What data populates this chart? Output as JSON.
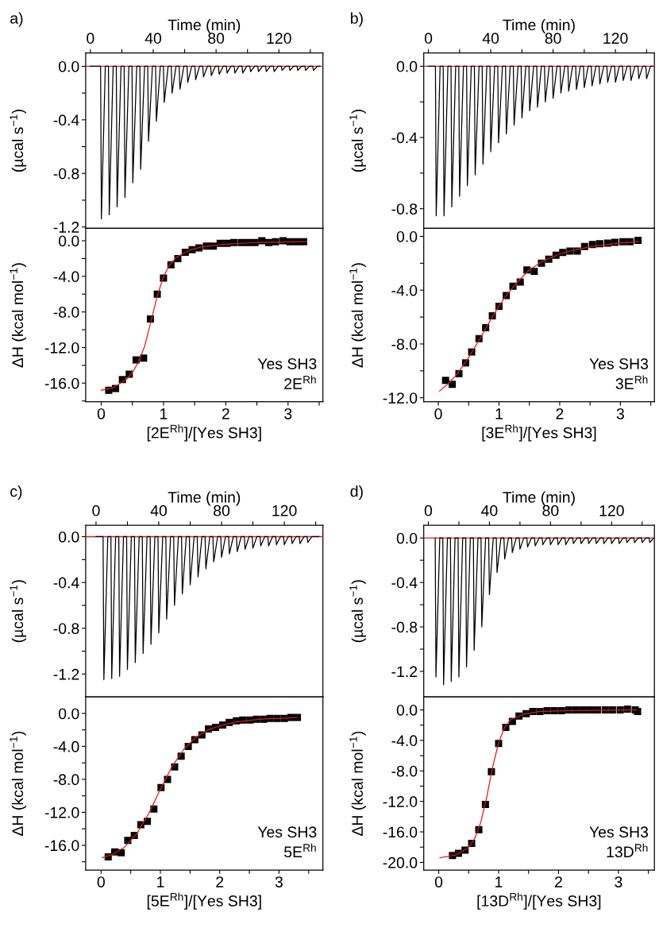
{
  "chart_data": [
    {
      "type": "line",
      "title": "a)",
      "xlabel": "Time (min)",
      "ylabel": "(µcal s$^{−1}$)",
      "grid": false,
      "marker": "none",
      "line_style": "solid",
      "x": [
        0,
        6.5,
        7,
        9.5,
        11.5,
        12,
        14.5,
        16.5,
        17,
        19.5,
        21.5,
        22,
        24.5,
        26.5,
        27,
        29.5,
        31.5,
        32,
        34.5,
        36.5,
        37,
        39.5,
        41.5,
        42,
        44.5,
        46.5,
        47,
        49.5,
        51.5,
        52,
        54.5,
        56.5,
        57,
        59.5,
        61.5,
        62,
        64.5,
        66.5,
        67,
        69.5,
        71.5,
        72,
        74.5,
        76.5,
        77,
        79.5,
        81.5,
        82,
        84.5,
        86.5,
        87,
        89.5,
        91.5,
        92,
        94.5,
        96.5,
        97,
        99.5,
        101.5,
        102,
        104.5,
        106.5,
        107,
        109.5,
        111.5,
        112,
        114.5,
        116.5,
        117,
        119.5,
        121.5,
        122,
        124.5,
        126.5,
        127,
        129.5,
        131.5,
        132,
        134.5,
        136.5,
        137,
        139.5,
        141.5,
        142,
        144.5,
        146
      ],
      "series": [
        {
          "color": "#000000",
          "values": [
            0,
            0,
            -1.14,
            0,
            0,
            -1.11,
            0,
            0,
            -1.05,
            0,
            0,
            -0.98,
            0,
            0,
            -0.87,
            0,
            0,
            -0.77,
            0,
            0,
            -0.56,
            0,
            0,
            -0.41,
            0,
            0,
            -0.27,
            0,
            0,
            -0.2,
            0,
            0,
            -0.17,
            0,
            0,
            -0.12,
            0,
            0,
            -0.1,
            0,
            0,
            -0.08,
            0,
            0,
            -0.07,
            0,
            0,
            -0.06,
            0,
            0,
            -0.05,
            0,
            0,
            -0.05,
            0,
            0,
            -0.05,
            0,
            0,
            -0.04,
            0,
            0,
            -0.04,
            0,
            0,
            -0.04,
            0,
            0,
            -0.04,
            0,
            0,
            -0.03,
            0,
            0,
            -0.03,
            0,
            0,
            -0.03,
            0,
            0,
            -0.03,
            0,
            0,
            -0.03,
            0,
            0
          ]
        }
      ],
      "ref_lines": [
        {
          "axis": "y",
          "value": 0,
          "color": "#e31a1c"
        }
      ],
      "xlim": [
        -3,
        148
      ],
      "ylim": [
        -1.21,
        0.1
      ],
      "xticks": [
        {
          "value": 0,
          "label": "0"
        },
        {
          "value": 20,
          "label": null
        },
        {
          "value": 40,
          "label": "40"
        },
        {
          "value": 60,
          "label": null
        },
        {
          "value": 80,
          "label": "80"
        },
        {
          "value": 100,
          "label": null
        },
        {
          "value": 120,
          "label": "120"
        },
        {
          "value": 140,
          "label": null
        }
      ],
      "yticks": [
        {
          "value": 0,
          "label": "0.0"
        },
        {
          "value": -0.2,
          "label": null
        },
        {
          "value": -0.4,
          "label": "-0.4"
        },
        {
          "value": -0.6,
          "label": null
        },
        {
          "value": -0.8,
          "label": "-0.8"
        },
        {
          "value": -1.0,
          "label": null
        },
        {
          "value": -1.2,
          "label": "-1.2"
        }
      ]
    },
    {
      "type": "scatter",
      "xlabel": "[2E$^{Rh}$]/[Yes SH3]",
      "ylabel": "ΔH (kcal mol$^{−1}$)",
      "grid": false,
      "marker": "square",
      "annotations": [
        "Yes SH3",
        "2E$^{Rh}$"
      ],
      "series": [
        {
          "type": "scatter",
          "color": "#000000",
          "x": [
            0.12,
            0.23,
            0.34,
            0.45,
            0.56,
            0.68,
            0.79,
            0.9,
            1.0,
            1.12,
            1.23,
            1.35,
            1.46,
            1.57,
            1.69,
            1.8,
            1.91,
            2.02,
            2.13,
            2.25,
            2.36,
            2.47,
            2.58,
            2.69,
            2.8,
            2.92,
            3.03,
            3.14,
            3.25
          ],
          "values": [
            -16.8,
            -16.6,
            -15.6,
            -15.0,
            -13.4,
            -13.2,
            -8.8,
            -6.0,
            -4.2,
            -2.7,
            -2.0,
            -1.3,
            -1.0,
            -0.8,
            -0.6,
            -0.6,
            -0.3,
            -0.3,
            -0.2,
            -0.2,
            -0.2,
            -0.2,
            0.0,
            -0.2,
            -0.1,
            0.0,
            -0.1,
            -0.1,
            -0.1
          ]
        },
        {
          "type": "line",
          "marker": "none",
          "color": "#e31a1c",
          "x": [
            0.0,
            0.2,
            0.4,
            0.5,
            0.6,
            0.7,
            0.8,
            0.9,
            1.0,
            1.1,
            1.2,
            1.4,
            1.6,
            2.0,
            2.5,
            3.3
          ],
          "values": [
            -16.8,
            -16.5,
            -15.6,
            -14.8,
            -13.6,
            -11.8,
            -9.0,
            -6.2,
            -4.0,
            -2.7,
            -1.9,
            -1.1,
            -0.7,
            -0.4,
            -0.2,
            -0.1
          ]
        }
      ],
      "xlim": [
        -0.25,
        3.56
      ],
      "ylim": [
        -18.1,
        1.4
      ],
      "xticks": [
        {
          "value": 0,
          "label": "0"
        },
        {
          "value": 0.5,
          "label": null
        },
        {
          "value": 1,
          "label": "1"
        },
        {
          "value": 1.5,
          "label": null
        },
        {
          "value": 2,
          "label": "2"
        },
        {
          "value": 2.5,
          "label": null
        },
        {
          "value": 3,
          "label": "3"
        },
        {
          "value": 3.5,
          "label": null
        }
      ],
      "yticks": [
        {
          "value": 0,
          "label": "0.0"
        },
        {
          "value": -2,
          "label": null
        },
        {
          "value": -4,
          "label": "-4.0"
        },
        {
          "value": -6,
          "label": null
        },
        {
          "value": -8,
          "label": "-8.0"
        },
        {
          "value": -10,
          "label": null
        },
        {
          "value": -12,
          "label": "-12.0"
        },
        {
          "value": -14,
          "label": null
        },
        {
          "value": -16,
          "label": "-16.0"
        },
        {
          "value": -18,
          "label": null
        }
      ]
    },
    {
      "type": "line",
      "title": "b)",
      "xlabel": "Time (min)",
      "ylabel": "(µcal s$^{−1}$)",
      "grid": false,
      "marker": "none",
      "line_style": "solid",
      "x": [
        0,
        4.5,
        5,
        7.5,
        9.5,
        10,
        12.5,
        14.5,
        15,
        17.5,
        19.5,
        20,
        22.5,
        24.5,
        25,
        27.5,
        29.5,
        30,
        32.5,
        34.5,
        35,
        37.5,
        39.5,
        40,
        42.5,
        44.5,
        45,
        47.5,
        49.5,
        50,
        52.5,
        54.5,
        55,
        57.5,
        59.5,
        60,
        62.5,
        64.5,
        65,
        67.5,
        69.5,
        70,
        72.5,
        74.5,
        75,
        77.5,
        79.5,
        80,
        82.5,
        84.5,
        85,
        87.5,
        89.5,
        90,
        92.5,
        94.5,
        95,
        97.5,
        99.5,
        100,
        102.5,
        104.5,
        105,
        107.5,
        109.5,
        110,
        112.5,
        114.5,
        115,
        117.5,
        119.5,
        120,
        122.5,
        124.5,
        125,
        127.5,
        129.5,
        130,
        132.5,
        134.5,
        135,
        137.5,
        139.5,
        140,
        142.5,
        144
      ],
      "series": [
        {
          "color": "#000000",
          "values": [
            0,
            0,
            -0.84,
            0,
            0,
            -0.84,
            0,
            0,
            -0.79,
            0,
            0,
            -0.73,
            0,
            0,
            -0.67,
            0,
            0,
            -0.61,
            0,
            0,
            -0.55,
            0,
            0,
            -0.48,
            0,
            0,
            -0.43,
            0,
            0,
            -0.38,
            0,
            0,
            -0.33,
            0,
            0,
            -0.29,
            0,
            0,
            -0.25,
            0,
            0,
            -0.23,
            0,
            0,
            -0.2,
            0,
            0,
            -0.18,
            0,
            0,
            -0.15,
            0,
            0,
            -0.14,
            0,
            0,
            -0.13,
            0,
            0,
            -0.12,
            0,
            0,
            -0.11,
            0,
            0,
            -0.1,
            0,
            0,
            -0.09,
            0,
            0,
            -0.09,
            0,
            0,
            -0.08,
            0,
            0,
            -0.08,
            0,
            0,
            -0.07,
            0,
            0,
            -0.07,
            0,
            0
          ]
        }
      ],
      "ref_lines": [
        {
          "axis": "y",
          "value": 0,
          "color": "#e31a1c"
        }
      ],
      "xlim": [
        -3,
        145
      ],
      "ylim": [
        -0.91,
        0.075
      ],
      "xticks": [
        {
          "value": 0,
          "label": "0"
        },
        {
          "value": 20,
          "label": null
        },
        {
          "value": 40,
          "label": "40"
        },
        {
          "value": 60,
          "label": null
        },
        {
          "value": 80,
          "label": "80"
        },
        {
          "value": 100,
          "label": null
        },
        {
          "value": 120,
          "label": "120"
        },
        {
          "value": 140,
          "label": null
        }
      ],
      "yticks": [
        {
          "value": 0,
          "label": "0.0"
        },
        {
          "value": -0.2,
          "label": null
        },
        {
          "value": -0.4,
          "label": "-0.4"
        },
        {
          "value": -0.6,
          "label": null
        },
        {
          "value": -0.8,
          "label": "-0.8"
        }
      ]
    },
    {
      "type": "scatter",
      "xlabel": "[3E$^{Rh}$]/[Yes SH3]",
      "ylabel": "ΔH (kcal mol$^{−1}$)",
      "grid": false,
      "marker": "square",
      "annotations": [
        "Yes SH3",
        "3E$^{Rh}$"
      ],
      "series": [
        {
          "type": "scatter",
          "color": "#000000",
          "x": [
            0.12,
            0.23,
            0.34,
            0.45,
            0.55,
            0.67,
            0.78,
            0.89,
            1.0,
            1.12,
            1.23,
            1.35,
            1.46,
            1.58,
            1.7,
            1.82,
            1.94,
            2.05,
            2.17,
            2.29,
            2.41,
            2.54,
            2.66,
            2.79,
            2.91,
            3.04,
            3.16,
            3.29
          ],
          "values": [
            -10.7,
            -11.0,
            -10.2,
            -9.4,
            -8.6,
            -7.6,
            -6.8,
            -5.9,
            -5.2,
            -4.4,
            -3.7,
            -3.4,
            -2.5,
            -2.6,
            -2.0,
            -1.7,
            -1.4,
            -1.2,
            -1.1,
            -1.1,
            -0.75,
            -0.6,
            -0.55,
            -0.5,
            -0.45,
            -0.4,
            -0.4,
            -0.3
          ]
        },
        {
          "type": "line",
          "marker": "none",
          "color": "#e31a1c",
          "x": [
            0.02,
            0.15,
            0.3,
            0.5,
            0.7,
            0.9,
            1.1,
            1.3,
            1.5,
            1.7,
            2.0,
            2.3,
            2.6,
            3.0,
            3.3
          ],
          "values": [
            -11.5,
            -11.0,
            -10.3,
            -9.0,
            -7.5,
            -5.9,
            -4.5,
            -3.4,
            -2.5,
            -1.9,
            -1.3,
            -0.95,
            -0.7,
            -0.5,
            -0.38
          ]
        }
      ],
      "xlim": [
        -0.24,
        3.56
      ],
      "ylim": [
        -12.3,
        0.6
      ],
      "xticks": [
        {
          "value": 0,
          "label": "0"
        },
        {
          "value": 0.5,
          "label": null
        },
        {
          "value": 1,
          "label": "1"
        },
        {
          "value": 1.5,
          "label": null
        },
        {
          "value": 2,
          "label": "2"
        },
        {
          "value": 2.5,
          "label": null
        },
        {
          "value": 3,
          "label": "3"
        },
        {
          "value": 3.5,
          "label": null
        }
      ],
      "yticks": [
        {
          "value": 0,
          "label": "0.0"
        },
        {
          "value": -2,
          "label": null
        },
        {
          "value": -4,
          "label": "-4.0"
        },
        {
          "value": -6,
          "label": null
        },
        {
          "value": -8,
          "label": "-8.0"
        },
        {
          "value": -10,
          "label": null
        },
        {
          "value": -12,
          "label": "-12.0"
        }
      ]
    },
    {
      "type": "line",
      "title": "c)",
      "xlabel": "Time (min)",
      "ylabel": "(µcal s$^{−1}$)",
      "grid": false,
      "marker": "none",
      "line_style": "solid",
      "x": [
        0,
        4.5,
        5,
        7.5,
        9.5,
        10,
        12.5,
        14.5,
        15,
        17.5,
        19.5,
        20,
        22.5,
        24.5,
        25,
        27.5,
        29.5,
        30,
        32.5,
        34.5,
        35,
        37.5,
        39.5,
        40,
        42.5,
        44.5,
        45,
        47.5,
        49.5,
        50,
        52.5,
        54.5,
        55,
        57.5,
        59.5,
        60,
        62.5,
        64.5,
        65,
        67.5,
        69.5,
        70,
        72.5,
        74.5,
        75,
        77.5,
        79.5,
        80,
        82.5,
        84.5,
        85,
        87.5,
        89.5,
        90,
        92.5,
        94.5,
        95,
        97.5,
        99.5,
        100,
        102.5,
        104.5,
        105,
        107.5,
        109.5,
        110,
        112.5,
        114.5,
        115,
        117.5,
        119.5,
        120,
        122.5,
        124.5,
        125,
        127.5,
        129.5,
        130,
        132.5,
        134.5,
        135,
        137.5,
        142
      ],
      "series": [
        {
          "color": "#000000",
          "values": [
            0,
            0,
            -1.25,
            0,
            0,
            -1.24,
            0,
            0,
            -1.22,
            0,
            0,
            -1.16,
            0,
            0,
            -1.1,
            0,
            0,
            -1.02,
            0,
            0,
            -0.94,
            0,
            0,
            -0.84,
            0,
            0,
            -0.72,
            0,
            0,
            -0.6,
            0,
            0,
            -0.5,
            0,
            0,
            -0.42,
            0,
            0,
            -0.35,
            0,
            0,
            -0.28,
            0,
            0,
            -0.22,
            0,
            0,
            -0.18,
            0,
            0,
            -0.15,
            0,
            0,
            -0.13,
            0,
            0,
            -0.11,
            0,
            0,
            -0.1,
            0,
            0,
            -0.08,
            0,
            0,
            -0.08,
            0,
            0,
            -0.07,
            0,
            0,
            -0.07,
            0,
            0,
            -0.06,
            0,
            0,
            -0.06,
            0,
            0,
            -0.05,
            0,
            0
          ]
        }
      ],
      "ref_lines": [
        {
          "axis": "y",
          "value": 0,
          "color": "#e31a1c"
        }
      ],
      "xlim": [
        -6.6,
        144.6
      ],
      "ylim": [
        -1.4,
        0.1
      ],
      "xticks": [
        {
          "value": 0,
          "label": "0"
        },
        {
          "value": 20,
          "label": null
        },
        {
          "value": 40,
          "label": "40"
        },
        {
          "value": 60,
          "label": null
        },
        {
          "value": 80,
          "label": "80"
        },
        {
          "value": 100,
          "label": null
        },
        {
          "value": 120,
          "label": "120"
        },
        {
          "value": 140,
          "label": null
        }
      ],
      "yticks": [
        {
          "value": 0,
          "label": "0.0"
        },
        {
          "value": -0.2,
          "label": null
        },
        {
          "value": -0.4,
          "label": "-0.4"
        },
        {
          "value": -0.6,
          "label": null
        },
        {
          "value": -0.8,
          "label": "-0.8"
        },
        {
          "value": -1.0,
          "label": null
        },
        {
          "value": -1.2,
          "label": "-1.2"
        }
      ]
    },
    {
      "type": "scatter",
      "xlabel": "[5E$^{Rh}$]/[Yes SH3]",
      "ylabel": "ΔH (kcal mol$^{−1}$)",
      "grid": false,
      "marker": "square",
      "annotations": [
        "Yes SH3",
        "5E$^{Rh}$"
      ],
      "series": [
        {
          "type": "scatter",
          "color": "#000000",
          "x": [
            0.12,
            0.23,
            0.34,
            0.45,
            0.56,
            0.67,
            0.78,
            0.89,
            1.01,
            1.12,
            1.24,
            1.35,
            1.47,
            1.58,
            1.7,
            1.81,
            1.93,
            2.05,
            2.16,
            2.28,
            2.39,
            2.51,
            2.62,
            2.74,
            2.85,
            2.97,
            3.09,
            3.2,
            3.31
          ],
          "values": [
            -17.4,
            -16.8,
            -16.9,
            -15.4,
            -14.8,
            -13.5,
            -13.1,
            -11.6,
            -9.0,
            -8.0,
            -6.5,
            -5.2,
            -4.0,
            -3.2,
            -2.6,
            -1.9,
            -1.7,
            -1.4,
            -1.1,
            -0.9,
            -0.8,
            -0.8,
            -0.7,
            -0.7,
            -0.6,
            -0.6,
            -0.6,
            -0.5,
            -0.5
          ]
        },
        {
          "type": "line",
          "marker": "none",
          "color": "#e31a1c",
          "x": [
            0.02,
            0.2,
            0.4,
            0.6,
            0.8,
            1.0,
            1.2,
            1.4,
            1.6,
            1.8,
            2.0,
            2.3,
            2.7,
            3.0,
            3.3
          ],
          "values": [
            -17.5,
            -17.1,
            -16.2,
            -14.6,
            -12.2,
            -9.2,
            -6.4,
            -4.3,
            -2.9,
            -2.0,
            -1.5,
            -1.0,
            -0.7,
            -0.6,
            -0.5
          ]
        }
      ],
      "xlim": [
        -0.26,
        3.74
      ],
      "ylim": [
        -19.0,
        2.0
      ],
      "xticks": [
        {
          "value": 0,
          "label": "0"
        },
        {
          "value": 0.5,
          "label": null
        },
        {
          "value": 1,
          "label": "1"
        },
        {
          "value": 1.5,
          "label": null
        },
        {
          "value": 2,
          "label": "2"
        },
        {
          "value": 2.5,
          "label": null
        },
        {
          "value": 3,
          "label": "3"
        },
        {
          "value": 3.5,
          "label": null
        }
      ],
      "yticks": [
        {
          "value": 0,
          "label": "0.0"
        },
        {
          "value": -2,
          "label": null
        },
        {
          "value": -4,
          "label": "-4.0"
        },
        {
          "value": -6,
          "label": null
        },
        {
          "value": -8,
          "label": "-8.0"
        },
        {
          "value": -10,
          "label": null
        },
        {
          "value": -12,
          "label": "-12.0"
        },
        {
          "value": -14,
          "label": null
        },
        {
          "value": -16,
          "label": "-16.0"
        },
        {
          "value": -18,
          "label": null
        }
      ]
    },
    {
      "type": "line",
      "title": "d)",
      "xlabel": "Time (min)",
      "ylabel": "(µcal s$^{−1}$)",
      "grid": false,
      "marker": "none",
      "line_style": "solid",
      "x": [
        4.5,
        5,
        7.5,
        9.5,
        10,
        12.5,
        14.5,
        15,
        17.5,
        19.5,
        20,
        22.5,
        24.5,
        25,
        27.5,
        29.5,
        30,
        32.5,
        34.5,
        35,
        37.5,
        39.5,
        40,
        42.5,
        44.5,
        45,
        47.5,
        49.5,
        50,
        52.5,
        54.5,
        55,
        57.5,
        59.5,
        60,
        62.5,
        64.5,
        65,
        67.5,
        69.5,
        70,
        72.5,
        74.5,
        75,
        77.5,
        79.5,
        80,
        82.5,
        84.5,
        85,
        87.5,
        89.5,
        90,
        92.5,
        94.5,
        95,
        97.5,
        99.5,
        100,
        102.5,
        104.5,
        105,
        107.5,
        109.5,
        110,
        112.5,
        114.5,
        115,
        117.5,
        119.5,
        120,
        122.5,
        124.5,
        125,
        127.5,
        129.5,
        130,
        132.5,
        134.5,
        135,
        137.5,
        139.5,
        140,
        142.5,
        144.5,
        145,
        147.5
      ],
      "series": [
        {
          "color": "#000000",
          "values": [
            0,
            -1.25,
            0,
            0,
            -1.32,
            0,
            0,
            -1.29,
            0,
            0,
            -1.25,
            0,
            0,
            -1.16,
            0,
            0,
            -1.01,
            0,
            0,
            -0.8,
            0,
            0,
            -0.51,
            0,
            0,
            -0.31,
            0,
            0,
            -0.19,
            0,
            0,
            -0.13,
            0,
            0,
            -0.1,
            0,
            0,
            -0.08,
            0,
            0,
            -0.07,
            0,
            0,
            -0.06,
            0,
            0,
            -0.06,
            0,
            0,
            -0.06,
            0,
            0,
            -0.06,
            0,
            0,
            -0.05,
            0,
            0,
            -0.05,
            0,
            0,
            -0.05,
            0,
            0,
            -0.05,
            0,
            0,
            -0.05,
            0,
            0,
            -0.05,
            0,
            0,
            -0.05,
            0,
            0,
            -0.04,
            0,
            0,
            -0.04,
            0,
            0,
            -0.04,
            0,
            0,
            -0.04,
            0
          ]
        }
      ],
      "ref_lines": [
        {
          "axis": "y",
          "value": 0,
          "color": "#e31a1c"
        }
      ],
      "xlim": [
        -3,
        148
      ],
      "ylim": [
        -1.43,
        0.115
      ],
      "xticks": [
        {
          "value": 0,
          "label": "0"
        },
        {
          "value": 20,
          "label": null
        },
        {
          "value": 40,
          "label": "40"
        },
        {
          "value": 60,
          "label": null
        },
        {
          "value": 80,
          "label": "80"
        },
        {
          "value": 100,
          "label": null
        },
        {
          "value": 120,
          "label": "120"
        },
        {
          "value": 140,
          "label": null
        }
      ],
      "yticks": [
        {
          "value": 0,
          "label": "0.0"
        },
        {
          "value": -0.2,
          "label": null
        },
        {
          "value": -0.4,
          "label": "-0.4"
        },
        {
          "value": -0.6,
          "label": null
        },
        {
          "value": -0.8,
          "label": "-0.8"
        },
        {
          "value": -1.0,
          "label": null
        },
        {
          "value": -1.2,
          "label": "-1.2"
        }
      ]
    },
    {
      "type": "scatter",
      "xlabel": "[13D$^{Rh}$]/[Yes SH3]",
      "ylabel": "ΔH (kcal mol$^{−1}$)",
      "grid": false,
      "marker": "square",
      "annotations": [
        "Yes SH3",
        "13D$^{Rh}$"
      ],
      "series": [
        {
          "type": "scatter",
          "color": "#000000",
          "x": [
            0.23,
            0.33,
            0.44,
            0.55,
            0.67,
            0.78,
            0.88,
            1.0,
            1.12,
            1.23,
            1.34,
            1.46,
            1.57,
            1.69,
            1.81,
            1.93,
            2.05,
            2.17,
            2.29,
            2.41,
            2.53,
            2.65,
            2.78,
            2.9,
            3.03,
            3.15,
            3.28,
            3.32
          ],
          "values": [
            -19.1,
            -18.8,
            -18.4,
            -17.5,
            -15.7,
            -12.4,
            -8.1,
            -4.4,
            -2.3,
            -1.5,
            -0.8,
            -0.5,
            -0.2,
            -0.2,
            -0.1,
            -0.1,
            -0.1,
            0.0,
            0.0,
            0.0,
            0.0,
            0.0,
            0.0,
            0.0,
            0.0,
            0.1,
            0.0,
            -0.2
          ]
        },
        {
          "type": "line",
          "marker": "none",
          "color": "#e31a1c",
          "x": [
            0.02,
            0.3,
            0.5,
            0.6,
            0.7,
            0.8,
            0.9,
            1.0,
            1.1,
            1.2,
            1.4,
            1.7,
            2.2,
            3.3
          ],
          "values": [
            -19.4,
            -19.0,
            -18.0,
            -16.9,
            -14.8,
            -11.5,
            -7.5,
            -4.3,
            -2.3,
            -1.3,
            -0.6,
            -0.2,
            -0.1,
            0.0
          ]
        }
      ],
      "xlim": [
        -0.25,
        3.6
      ],
      "ylim": [
        -21.0,
        1.7
      ],
      "xticks": [
        {
          "value": 0,
          "label": "0"
        },
        {
          "value": 0.5,
          "label": null
        },
        {
          "value": 1,
          "label": "1"
        },
        {
          "value": 1.5,
          "label": null
        },
        {
          "value": 2,
          "label": "2"
        },
        {
          "value": 2.5,
          "label": null
        },
        {
          "value": 3,
          "label": "3"
        },
        {
          "value": 3.5,
          "label": null
        }
      ],
      "yticks": [
        {
          "value": 0,
          "label": "0.0"
        },
        {
          "value": -2,
          "label": null
        },
        {
          "value": -4,
          "label": "-4.0"
        },
        {
          "value": -6,
          "label": null
        },
        {
          "value": -8,
          "label": "-8.0"
        },
        {
          "value": -10,
          "label": null
        },
        {
          "value": -12,
          "label": "-12.0"
        },
        {
          "value": -14,
          "label": null
        },
        {
          "value": -16,
          "label": "-16.0"
        },
        {
          "value": -18,
          "label": null
        },
        {
          "value": -20,
          "label": "-20.0"
        }
      ]
    }
  ]
}
